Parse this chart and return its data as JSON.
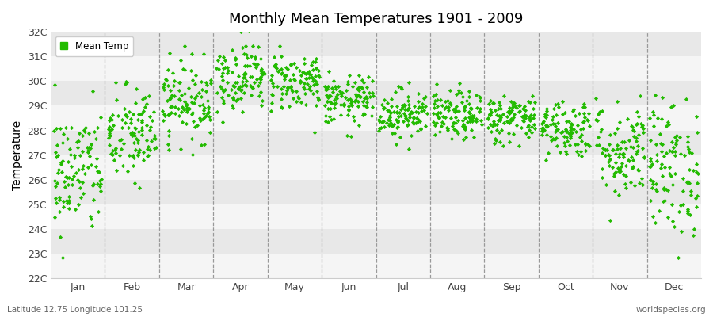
{
  "title": "Monthly Mean Temperatures 1901 - 2009",
  "ylabel": "Temperature",
  "xlabel_labels": [
    "Jan",
    "Feb",
    "Mar",
    "Apr",
    "May",
    "Jun",
    "Jul",
    "Aug",
    "Sep",
    "Oct",
    "Nov",
    "Dec"
  ],
  "legend_label": "Mean Temp",
  "marker_color": "#22bb00",
  "bg_color": "#ffffff",
  "band_light": "#f5f5f5",
  "band_dark": "#e8e8e8",
  "ylim": [
    22,
    32
  ],
  "ytick_vals": [
    22,
    23,
    24,
    25,
    26,
    27,
    28,
    29,
    30,
    31,
    32
  ],
  "ytick_labels": [
    "22C",
    "23C",
    "24C",
    "25C",
    "26C",
    "27C",
    "28C",
    "29C",
    "30C",
    "31C",
    "32C"
  ],
  "footer_left": "Latitude 12.75 Longitude 101.25",
  "footer_right": "worldspecies.org",
  "num_years": 109,
  "seed": 42,
  "monthly_means": [
    26.3,
    27.8,
    29.2,
    30.2,
    30.0,
    29.2,
    28.7,
    28.6,
    28.5,
    28.1,
    27.2,
    26.5
  ],
  "monthly_stds": [
    1.3,
    1.0,
    0.8,
    0.7,
    0.6,
    0.5,
    0.5,
    0.5,
    0.5,
    0.6,
    1.0,
    1.4
  ]
}
